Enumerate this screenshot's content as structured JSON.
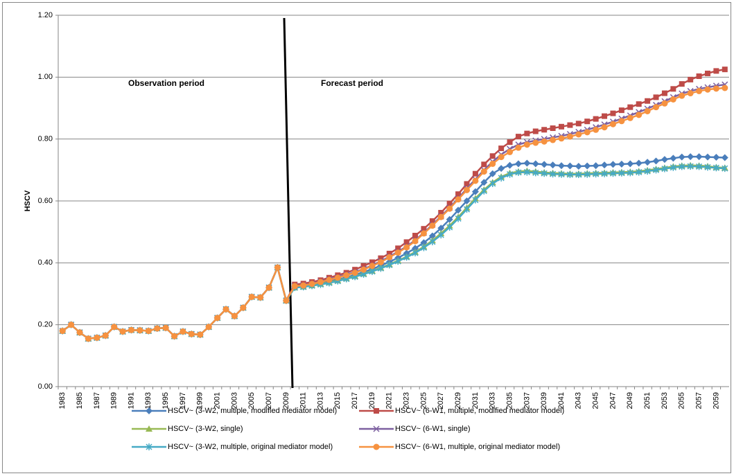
{
  "chart_data": {
    "type": "line",
    "y_label": "HSCV",
    "annotations": [
      "Observation period",
      "Forecast period"
    ],
    "categories": [
      "1983",
      null,
      "1985",
      null,
      "1987",
      null,
      "1989",
      null,
      "1991",
      null,
      "1993",
      null,
      "1995",
      null,
      "1997",
      null,
      "1999",
      null,
      "2001",
      null,
      "2003",
      null,
      "2005",
      null,
      "2007",
      null,
      "2009",
      null,
      "2011",
      null,
      "2013",
      null,
      "2015",
      null,
      "2017",
      null,
      "2019",
      null,
      "2021",
      null,
      "2023",
      null,
      "2025",
      null,
      "2027",
      null,
      "2029",
      null,
      "2031",
      null,
      "2033",
      null,
      "2035",
      null,
      "2037",
      null,
      "2039",
      null,
      "2041",
      null,
      "2043",
      null,
      "2045",
      null,
      "2047",
      null,
      "2049",
      null,
      "2051",
      null,
      "2053",
      null,
      "2055",
      null,
      "2057",
      null,
      "2059",
      null
    ],
    "ylim": [
      0,
      1.2
    ],
    "yticks": [
      {
        "value": 0,
        "label": "0.00"
      },
      {
        "value": 0.2,
        "label": "0.20"
      },
      {
        "value": 0.4,
        "label": "0.40"
      },
      {
        "value": 0.6,
        "label": "0.60"
      },
      {
        "value": 0.8,
        "label": "0.80"
      },
      {
        "value": 1,
        "label": "1.00"
      },
      {
        "value": 1.2,
        "label": "1.20"
      }
    ],
    "grid": true,
    "series": [
      {
        "name": "HSCV~ (3-W2, multiple, modified mediator model)",
        "color": "#4a7ebb",
        "marker": "diamond",
        "values": [
          0.18,
          0.2,
          0.175,
          0.155,
          0.158,
          0.165,
          0.193,
          0.178,
          0.183,
          0.182,
          0.18,
          0.188,
          0.19,
          0.163,
          0.178,
          0.17,
          0.168,
          0.193,
          0.222,
          0.25,
          0.228,
          0.255,
          0.29,
          0.288,
          0.32,
          0.385,
          0.278,
          0.322,
          0.325,
          0.329,
          0.334,
          0.34,
          0.346,
          0.353,
          0.361,
          0.37,
          0.38,
          0.391,
          0.403,
          0.416,
          0.431,
          0.447,
          0.465,
          0.487,
          0.512,
          0.54,
          0.57,
          0.6,
          0.63,
          0.66,
          0.688,
          0.705,
          0.715,
          0.72,
          0.722,
          0.72,
          0.718,
          0.716,
          0.714,
          0.713,
          0.712,
          0.713,
          0.714,
          0.716,
          0.718,
          0.719,
          0.72,
          0.722,
          0.725,
          0.729,
          0.734,
          0.738,
          0.742,
          0.743,
          0.743,
          0.742,
          0.741,
          0.74
        ]
      },
      {
        "name": "HSCV~ (6-W1, multiple, modified mediator model)",
        "color": "#be4b48",
        "marker": "square",
        "values": [
          0.18,
          0.2,
          0.175,
          0.155,
          0.158,
          0.165,
          0.193,
          0.178,
          0.183,
          0.182,
          0.18,
          0.188,
          0.19,
          0.163,
          0.178,
          0.17,
          0.168,
          0.193,
          0.222,
          0.25,
          0.228,
          0.255,
          0.29,
          0.288,
          0.32,
          0.385,
          0.278,
          0.33,
          0.333,
          0.338,
          0.344,
          0.352,
          0.36,
          0.368,
          0.378,
          0.39,
          0.402,
          0.415,
          0.43,
          0.447,
          0.467,
          0.488,
          0.51,
          0.535,
          0.562,
          0.592,
          0.622,
          0.655,
          0.688,
          0.718,
          0.745,
          0.77,
          0.79,
          0.808,
          0.818,
          0.825,
          0.83,
          0.835,
          0.84,
          0.845,
          0.85,
          0.857,
          0.865,
          0.874,
          0.883,
          0.893,
          0.903,
          0.913,
          0.923,
          0.935,
          0.948,
          0.962,
          0.978,
          0.992,
          1.003,
          1.012,
          1.02,
          1.025
        ]
      },
      {
        "name": "HSCV~ (3-W2, single)",
        "color": "#98b954",
        "marker": "triangle",
        "values": [
          0.18,
          0.2,
          0.175,
          0.155,
          0.158,
          0.165,
          0.193,
          0.178,
          0.183,
          0.182,
          0.18,
          0.188,
          0.19,
          0.163,
          0.178,
          0.17,
          0.168,
          0.193,
          0.222,
          0.25,
          0.228,
          0.255,
          0.29,
          0.288,
          0.32,
          0.385,
          0.278,
          0.32,
          0.323,
          0.327,
          0.332,
          0.337,
          0.343,
          0.35,
          0.357,
          0.365,
          0.374,
          0.384,
          0.395,
          0.407,
          0.42,
          0.435,
          0.452,
          0.472,
          0.495,
          0.52,
          0.548,
          0.578,
          0.608,
          0.636,
          0.66,
          0.678,
          0.69,
          0.695,
          0.697,
          0.695,
          0.692,
          0.69,
          0.689,
          0.688,
          0.688,
          0.689,
          0.69,
          0.691,
          0.692,
          0.693,
          0.694,
          0.696,
          0.699,
          0.703,
          0.707,
          0.711,
          0.714,
          0.715,
          0.714,
          0.712,
          0.709,
          0.707
        ]
      },
      {
        "name": "HSCV~ (6-W1, single)",
        "color": "#7d60a0",
        "marker": "x",
        "values": [
          0.18,
          0.2,
          0.175,
          0.155,
          0.158,
          0.165,
          0.193,
          0.178,
          0.183,
          0.182,
          0.18,
          0.188,
          0.19,
          0.163,
          0.178,
          0.17,
          0.168,
          0.193,
          0.222,
          0.25,
          0.228,
          0.255,
          0.29,
          0.288,
          0.32,
          0.385,
          0.278,
          0.325,
          0.328,
          0.333,
          0.339,
          0.346,
          0.354,
          0.362,
          0.37,
          0.38,
          0.392,
          0.405,
          0.42,
          0.436,
          0.453,
          0.473,
          0.497,
          0.523,
          0.55,
          0.578,
          0.608,
          0.64,
          0.67,
          0.7,
          0.727,
          0.75,
          0.768,
          0.782,
          0.79,
          0.795,
          0.8,
          0.805,
          0.81,
          0.816,
          0.823,
          0.83,
          0.838,
          0.847,
          0.856,
          0.866,
          0.876,
          0.887,
          0.898,
          0.91,
          0.922,
          0.935,
          0.947,
          0.955,
          0.962,
          0.967,
          0.972,
          0.976
        ]
      },
      {
        "name": "HSCV~ (3-W2, multiple, original mediator model)",
        "color": "#46aac5",
        "marker": "star",
        "values": [
          0.18,
          0.2,
          0.175,
          0.155,
          0.158,
          0.165,
          0.193,
          0.178,
          0.183,
          0.182,
          0.18,
          0.188,
          0.19,
          0.163,
          0.178,
          0.17,
          0.168,
          0.193,
          0.222,
          0.25,
          0.228,
          0.255,
          0.29,
          0.288,
          0.32,
          0.385,
          0.278,
          0.32,
          0.322,
          0.326,
          0.33,
          0.335,
          0.341,
          0.348,
          0.355,
          0.363,
          0.372,
          0.382,
          0.393,
          0.405,
          0.418,
          0.432,
          0.449,
          0.468,
          0.49,
          0.515,
          0.543,
          0.573,
          0.603,
          0.632,
          0.656,
          0.674,
          0.686,
          0.692,
          0.693,
          0.691,
          0.689,
          0.687,
          0.686,
          0.685,
          0.685,
          0.686,
          0.687,
          0.688,
          0.689,
          0.69,
          0.691,
          0.693,
          0.696,
          0.7,
          0.704,
          0.708,
          0.711,
          0.712,
          0.711,
          0.709,
          0.707,
          0.705
        ]
      },
      {
        "name": "HSCV~ (6-W1, multiple, original mediator model)",
        "color": "#f69240",
        "marker": "circle",
        "values": [
          0.18,
          0.2,
          0.175,
          0.155,
          0.158,
          0.165,
          0.193,
          0.178,
          0.183,
          0.182,
          0.18,
          0.188,
          0.19,
          0.163,
          0.178,
          0.17,
          0.168,
          0.193,
          0.222,
          0.25,
          0.228,
          0.255,
          0.29,
          0.288,
          0.32,
          0.385,
          0.278,
          0.325,
          0.327,
          0.332,
          0.338,
          0.345,
          0.352,
          0.36,
          0.368,
          0.378,
          0.39,
          0.402,
          0.418,
          0.433,
          0.45,
          0.47,
          0.495,
          0.52,
          0.548,
          0.575,
          0.605,
          0.635,
          0.665,
          0.695,
          0.72,
          0.742,
          0.758,
          0.772,
          0.782,
          0.788,
          0.792,
          0.797,
          0.802,
          0.808,
          0.815,
          0.822,
          0.83,
          0.838,
          0.848,
          0.858,
          0.868,
          0.878,
          0.89,
          0.903,
          0.915,
          0.928,
          0.94,
          0.948,
          0.955,
          0.96,
          0.963,
          0.965
        ]
      }
    ]
  }
}
